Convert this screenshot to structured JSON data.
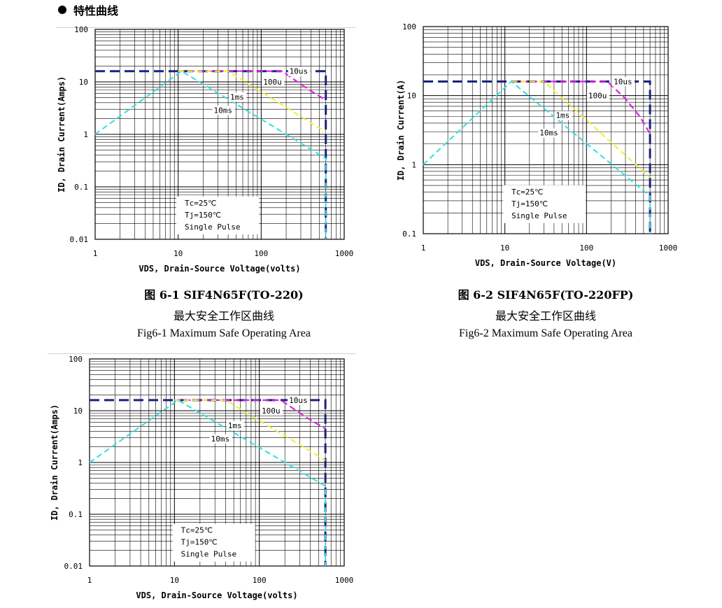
{
  "section": {
    "title": "特性曲线"
  },
  "captions": [
    {
      "title": "图 6-1 SIF4N65F(TO-220)",
      "cn": "最大安全工作区曲线",
      "en": "Fig6-1 Maximum Safe Operating Area"
    },
    {
      "title": "图 6-2 SIF4N65F(TO-220FP)",
      "cn": "最大安全工作区曲线",
      "en": "Fig6-2 Maximum Safe Operating Area"
    }
  ],
  "colors": {
    "dc": "#1a237e",
    "10us": "#1a237e",
    "100u": "#e020e0",
    "1ms": "#f0f030",
    "10ms": "#30e0e0"
  },
  "chart_data": [
    {
      "type": "line",
      "xscale": "log",
      "yscale": "log",
      "xlim": [
        1,
        1000
      ],
      "ylim": [
        0.01,
        100
      ],
      "xticks": [
        "1",
        "10",
        "100",
        "1000"
      ],
      "yticks": [
        "0.01",
        "0.1",
        "1",
        "10",
        "100"
      ],
      "xlabel": "VDS, Drain-Source Voltage(volts)",
      "ylabel": "ID, Drain Current(Amps)",
      "annotation": [
        "Tc=25℃",
        "Tj=150℃",
        "Single Pulse"
      ],
      "series": [
        {
          "name": "10us",
          "x": [
            1,
            600,
            600
          ],
          "y": [
            16,
            16,
            0.01
          ]
        },
        {
          "name": "100u",
          "x": [
            10,
            180,
            250,
            380,
            600
          ],
          "y": [
            16,
            16,
            11,
            7,
            4.5
          ]
        },
        {
          "name": "1ms",
          "x": [
            10,
            40,
            600
          ],
          "y": [
            16,
            16,
            1.1
          ]
        },
        {
          "name": "10ms",
          "x": [
            1,
            11,
            600,
            600
          ],
          "y": [
            1,
            16,
            0.35,
            0.01
          ]
        }
      ],
      "series_labels": [
        "10us",
        "100u",
        "1ms",
        "10ms"
      ]
    },
    {
      "type": "line",
      "xscale": "log",
      "yscale": "log",
      "xlim": [
        1,
        1000
      ],
      "ylim": [
        0.1,
        100
      ],
      "xticks": [
        "1",
        "10",
        "100",
        "1000"
      ],
      "yticks": [
        "0.1",
        "1",
        "10",
        "100"
      ],
      "xlabel": "VDS, Drain-Source Voltage(V)",
      "ylabel": "ID, Drain Current(A)",
      "annotation": [
        "Tc=25℃",
        "Tj=150℃",
        "Single Pulse"
      ],
      "series": [
        {
          "name": "10us",
          "x": [
            1,
            600,
            600
          ],
          "y": [
            16,
            16,
            0.1
          ]
        },
        {
          "name": "100u",
          "x": [
            12,
            180,
            300,
            450,
            600
          ],
          "y": [
            16,
            16,
            9,
            5,
            2.8
          ]
        },
        {
          "name": "1ms",
          "x": [
            12,
            30,
            600
          ],
          "y": [
            16,
            16,
            0.65
          ]
        },
        {
          "name": "10ms",
          "x": [
            1,
            12,
            600,
            600
          ],
          "y": [
            1,
            16,
            0.35,
            0.1
          ]
        }
      ],
      "series_labels": [
        "10us",
        "100u",
        "1ms",
        "10ms"
      ]
    },
    {
      "type": "line",
      "xscale": "log",
      "yscale": "log",
      "xlim": [
        1,
        1000
      ],
      "ylim": [
        0.01,
        100
      ],
      "xticks": [
        "1",
        "10",
        "100",
        "1000"
      ],
      "yticks": [
        "0.01",
        "0.1",
        "1",
        "10",
        "100"
      ],
      "xlabel": "VDS, Drain-Source Voltage(volts)",
      "ylabel": "ID, Drain Current(Amps)",
      "annotation": [
        "Tc=25℃",
        "Tj=150℃",
        "Single Pulse"
      ],
      "series": [
        {
          "name": "10us",
          "x": [
            1,
            600,
            600
          ],
          "y": [
            16,
            16,
            0.01
          ]
        },
        {
          "name": "100u",
          "x": [
            10,
            180,
            250,
            380,
            600
          ],
          "y": [
            16,
            16,
            11,
            7,
            4.5
          ]
        },
        {
          "name": "1ms",
          "x": [
            10,
            40,
            600
          ],
          "y": [
            16,
            16,
            1.1
          ]
        },
        {
          "name": "10ms",
          "x": [
            1,
            11,
            600,
            600
          ],
          "y": [
            1,
            16,
            0.35,
            0.01
          ]
        }
      ],
      "series_labels": [
        "10us",
        "100u",
        "1ms",
        "10ms"
      ]
    }
  ]
}
